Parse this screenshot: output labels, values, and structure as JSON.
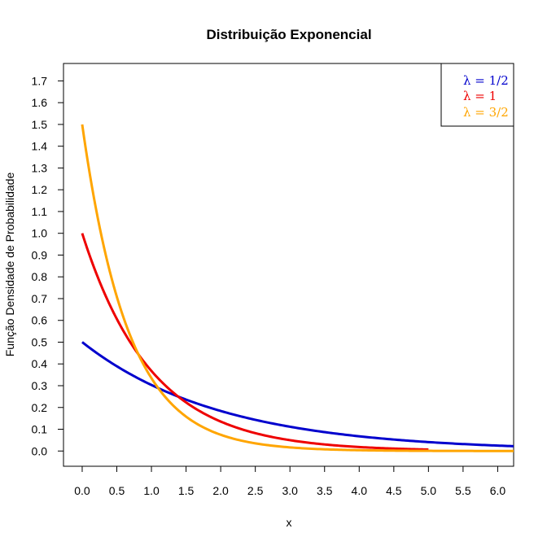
{
  "chart_data": {
    "type": "line",
    "title": "Distribuição Exponencial",
    "xlabel": "x",
    "ylabel": "Função Densidade de Probabilidade",
    "xlim": [
      -0.27,
      6.23
    ],
    "ylim": [
      -0.07,
      1.78
    ],
    "x_ticks": [
      "0.0",
      "0.5",
      "1.0",
      "1.5",
      "2.0",
      "2.5",
      "3.0",
      "3.5",
      "4.0",
      "4.5",
      "5.0",
      "5.5",
      "6.0"
    ],
    "y_ticks": [
      "0.0",
      "0.1",
      "0.2",
      "0.3",
      "0.4",
      "0.5",
      "0.6",
      "0.7",
      "0.8",
      "0.9",
      "1.0",
      "1.1",
      "1.2",
      "1.3",
      "1.4",
      "1.5",
      "1.6",
      "1.7"
    ],
    "grid": false,
    "legend_position": "top-right",
    "series": [
      {
        "name": "λ = 1/2",
        "lambda": 0.5,
        "x_range": [
          0,
          6.23
        ],
        "color": "#0000CD"
      },
      {
        "name": "λ = 1",
        "lambda": 1.0,
        "x_range": [
          0,
          5.0
        ],
        "color": "#EE0000"
      },
      {
        "name": "λ = 3/2",
        "lambda": 1.5,
        "x_range": [
          0,
          6.23
        ],
        "color": "#FFA500"
      }
    ]
  }
}
